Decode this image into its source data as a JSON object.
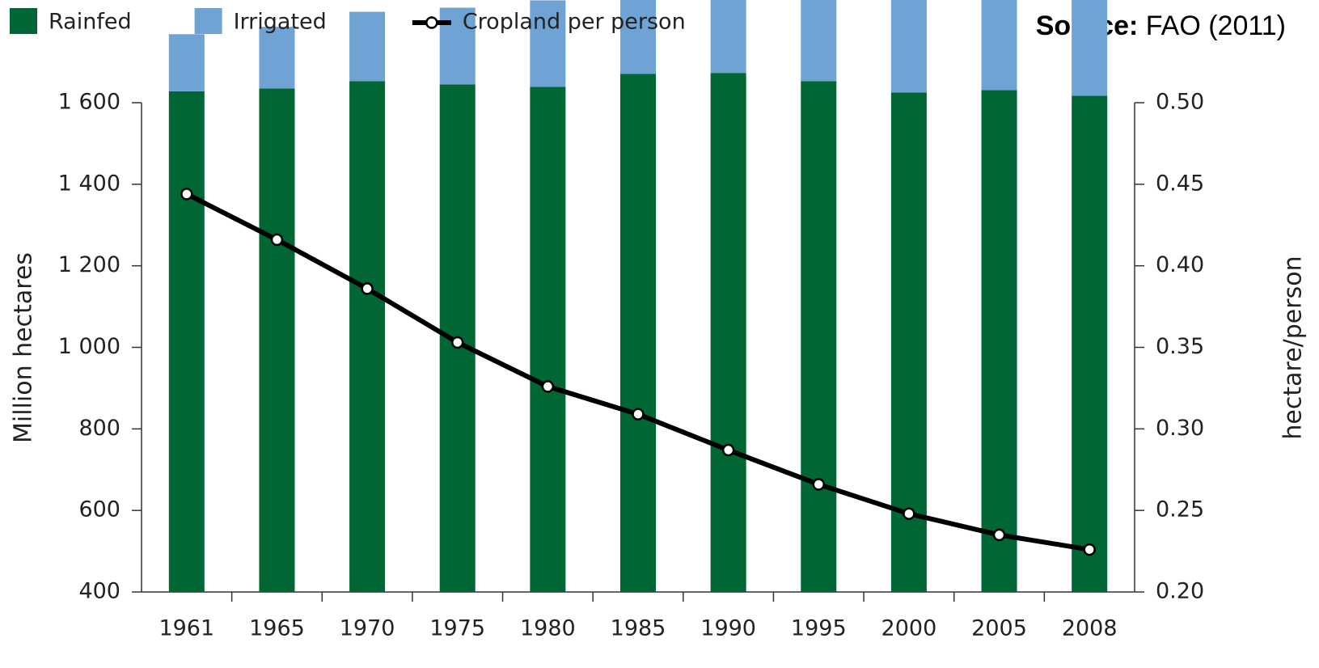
{
  "chart_data": {
    "type": "bar_line",
    "source_label": "Source:",
    "source": "FAO (2011)",
    "y_label": "Million hectares",
    "y2_label": "hectare/person",
    "categories": [
      "1961",
      "1965",
      "1970",
      "1975",
      "1980",
      "1985",
      "1990",
      "1995",
      "2000",
      "2005",
      "2008"
    ],
    "series": [
      {
        "name": "Rainfed",
        "color": "#006633",
        "kind": "bar",
        "values": [
          1228,
          1235,
          1253,
          1245,
          1239,
          1271,
          1273,
          1253,
          1225,
          1231,
          1217
        ]
      },
      {
        "name": "Irrigated",
        "color": "#6ea3d4",
        "kind": "bar",
        "values": [
          140,
          151,
          170,
          188,
          212,
          224,
          246,
          268,
          290,
          304,
          310
        ]
      },
      {
        "name": "Cropland per person",
        "color": "#000000",
        "kind": "line",
        "axis": "y2",
        "values": [
          0.444,
          0.416,
          0.386,
          0.353,
          0.326,
          0.309,
          0.287,
          0.266,
          0.248,
          0.235,
          0.226
        ]
      }
    ],
    "stacked": true,
    "ylim": [
      400,
      1600
    ],
    "yticks": [
      400,
      600,
      800,
      {
        "value": 1000,
        "label": "1 000"
      },
      {
        "value": 1200,
        "label": "1 200"
      },
      {
        "value": 1400,
        "label": "1 400"
      },
      {
        "value": 1600,
        "label": "1 600"
      }
    ],
    "y2lim": [
      0.2,
      0.5
    ],
    "y2ticks": [
      {
        "value": 0.2,
        "label": "0.20"
      },
      0.25,
      {
        "value": 0.3,
        "label": "0.30"
      },
      0.35,
      {
        "value": 0.4,
        "label": "0.40"
      },
      0.45,
      {
        "value": 0.5,
        "label": "0.50"
      }
    ],
    "legend": "top-left"
  }
}
